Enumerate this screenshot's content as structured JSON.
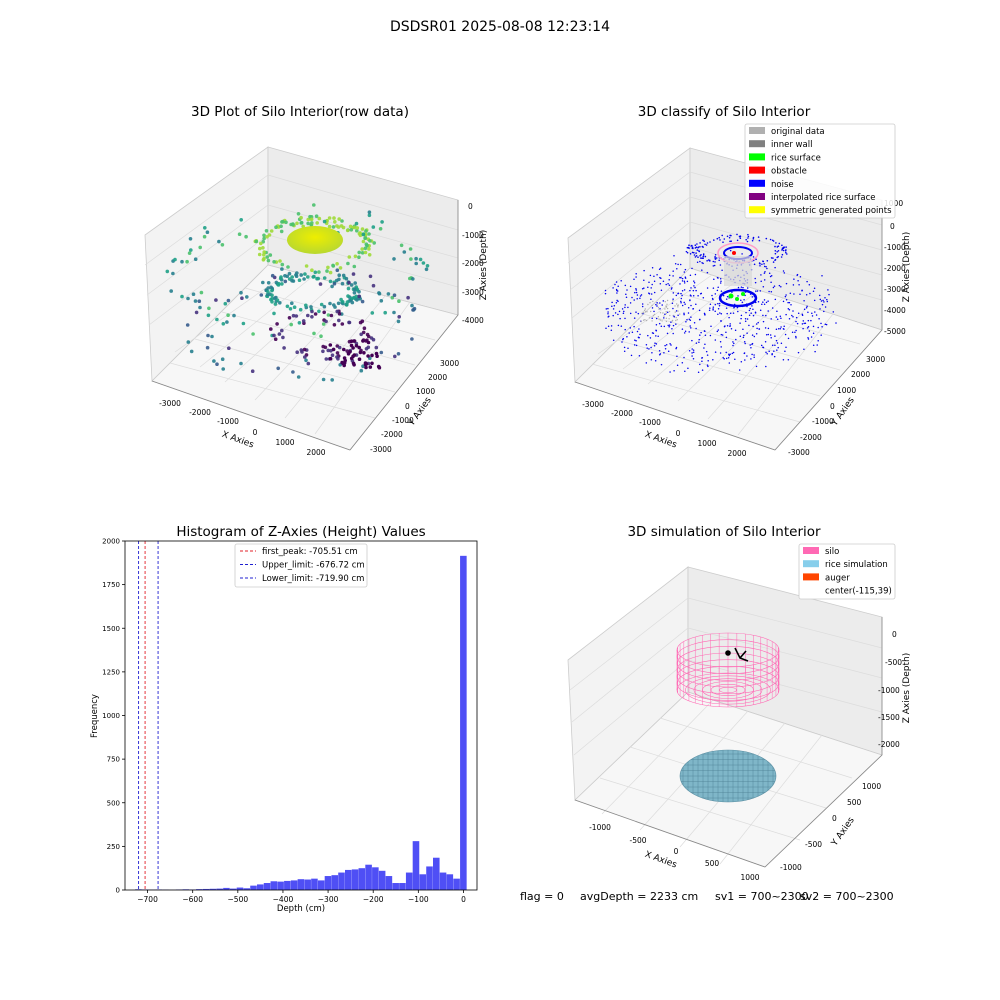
{
  "figure": {
    "suptitle": "DSDSR01 2025-08-08 12:23:14",
    "footer": {
      "flag": "flag = 0",
      "avg_depth": "avgDepth = 2233 cm",
      "sv1": "sv1 = 700~2300",
      "sv2": "sv2 = 700~2300"
    }
  },
  "colors": {
    "histogram_bar": "#4f4ff5",
    "first_peak_line": "#e0202a",
    "limit_line": "#2020d0",
    "noise": "#0000ee",
    "silo": "#ff69b4",
    "rice_simulation": "#87ceeb",
    "auger": "#ff4500"
  },
  "chart_data": [
    {
      "type": "scatter",
      "projection": "3d",
      "title": "3D Plot of Silo Interior(row data)",
      "xlabel": "X Axies",
      "ylabel": "Y Axies",
      "zlabel": "Z Axies (Depth)",
      "x_ticks": [
        "-3000",
        "-2000",
        "-1000",
        "0",
        "1000",
        "2000"
      ],
      "y_ticks": [
        "-3000",
        "-2000",
        "-1000",
        "0",
        "1000",
        "2000",
        "3000"
      ],
      "z_ticks": [
        "0",
        "-1000",
        "-2000",
        "-3000",
        "-4000"
      ],
      "colormap": "viridis",
      "grid": true
    },
    {
      "type": "scatter",
      "projection": "3d",
      "title": "3D classify of Silo Interior",
      "xlabel": "X Axies",
      "ylabel": "Y Axies",
      "zlabel": "Z Axies (Depth)",
      "x_ticks": [
        "-3000",
        "-2000",
        "-1000",
        "0",
        "1000",
        "2000"
      ],
      "y_ticks": [
        "-3000",
        "-2000",
        "-1000",
        "0",
        "1000",
        "2000",
        "3000"
      ],
      "z_ticks": [
        "1000",
        "0",
        "-1000",
        "-2000",
        "-3000",
        "-4000",
        "-5000"
      ],
      "legend_position": "top-right",
      "legend": [
        {
          "label": "original data",
          "color": "#b0b0b0"
        },
        {
          "label": "inner wall",
          "color": "#808080"
        },
        {
          "label": "rice surface",
          "color": "#00ff00"
        },
        {
          "label": "obstacle",
          "color": "#ff0000"
        },
        {
          "label": "noise",
          "color": "#0000ff"
        },
        {
          "label": "interpolated rice surface",
          "color": "#800080"
        },
        {
          "label": "symmetric generated points",
          "color": "#ffff00"
        }
      ],
      "grid": true
    },
    {
      "type": "bar",
      "title": "Histogram of Z-Axies (Height) Values",
      "xlabel": "Depth (cm)",
      "ylabel": "Frequency",
      "xlim": [
        -750,
        30
      ],
      "ylim": [
        0,
        2000
      ],
      "x_ticks": [
        -700,
        -600,
        -500,
        -400,
        -300,
        -200,
        -100,
        0
      ],
      "y_ticks": [
        0,
        250,
        500,
        750,
        1000,
        1250,
        1500,
        1750,
        2000
      ],
      "bin_width": 15,
      "bins": [
        {
          "x": -720,
          "v": 4
        },
        {
          "x": -705,
          "v": 3
        },
        {
          "x": -690,
          "v": 2
        },
        {
          "x": -675,
          "v": 3
        },
        {
          "x": -660,
          "v": 2
        },
        {
          "x": -645,
          "v": 1
        },
        {
          "x": -630,
          "v": 3
        },
        {
          "x": -615,
          "v": 4
        },
        {
          "x": -600,
          "v": 3
        },
        {
          "x": -585,
          "v": 5
        },
        {
          "x": -570,
          "v": 6
        },
        {
          "x": -555,
          "v": 7
        },
        {
          "x": -540,
          "v": 8
        },
        {
          "x": -525,
          "v": 12
        },
        {
          "x": -510,
          "v": 8
        },
        {
          "x": -495,
          "v": 14
        },
        {
          "x": -480,
          "v": 10
        },
        {
          "x": -465,
          "v": 25
        },
        {
          "x": -450,
          "v": 32
        },
        {
          "x": -435,
          "v": 40
        },
        {
          "x": -420,
          "v": 50
        },
        {
          "x": -405,
          "v": 48
        },
        {
          "x": -390,
          "v": 52
        },
        {
          "x": -375,
          "v": 55
        },
        {
          "x": -360,
          "v": 62
        },
        {
          "x": -345,
          "v": 60
        },
        {
          "x": -330,
          "v": 65
        },
        {
          "x": -315,
          "v": 55
        },
        {
          "x": -300,
          "v": 80
        },
        {
          "x": -285,
          "v": 85
        },
        {
          "x": -270,
          "v": 100
        },
        {
          "x": -255,
          "v": 115
        },
        {
          "x": -240,
          "v": 118
        },
        {
          "x": -225,
          "v": 125
        },
        {
          "x": -210,
          "v": 145
        },
        {
          "x": -195,
          "v": 130
        },
        {
          "x": -180,
          "v": 110
        },
        {
          "x": -165,
          "v": 80
        },
        {
          "x": -150,
          "v": 40
        },
        {
          "x": -135,
          "v": 40
        },
        {
          "x": -120,
          "v": 100
        },
        {
          "x": -105,
          "v": 280
        },
        {
          "x": -90,
          "v": 90
        },
        {
          "x": -75,
          "v": 135
        },
        {
          "x": -60,
          "v": 185
        },
        {
          "x": -45,
          "v": 100
        },
        {
          "x": -30,
          "v": 90
        },
        {
          "x": -15,
          "v": 65
        },
        {
          "x": 0,
          "v": 1915
        }
      ],
      "reference_lines": [
        {
          "name": "first_peak: -705.51 cm",
          "x": -705.51,
          "color": "#e0202a"
        },
        {
          "name": "Upper_limit: -676.72 cm",
          "x": -676.72,
          "color": "#2020d0"
        },
        {
          "name": "Lower_limit: -719.90 cm",
          "x": -719.9,
          "color": "#2020d0"
        }
      ],
      "legend_position": "top-center"
    },
    {
      "type": "scatter",
      "projection": "3d",
      "title": "3D simulation of Silo Interior",
      "xlabel": "X Axies",
      "ylabel": "Y Axies",
      "zlabel": "Z Axies (Depth)",
      "x_ticks": [
        "-1000",
        "-500",
        "0",
        "500",
        "1000"
      ],
      "y_ticks": [
        "-1000",
        "-500",
        "0",
        "500",
        "1000"
      ],
      "z_ticks": [
        "0",
        "-500",
        "-1000",
        "-1500",
        "-2000"
      ],
      "legend_position": "top-right",
      "legend": [
        {
          "label": "silo",
          "color": "#ff69b4"
        },
        {
          "label": "rice simulation",
          "color": "#87ceeb"
        },
        {
          "label": "auger",
          "color": "#ff4500"
        },
        {
          "label": "center(-115,39)",
          "color": ""
        }
      ],
      "grid": true
    }
  ]
}
